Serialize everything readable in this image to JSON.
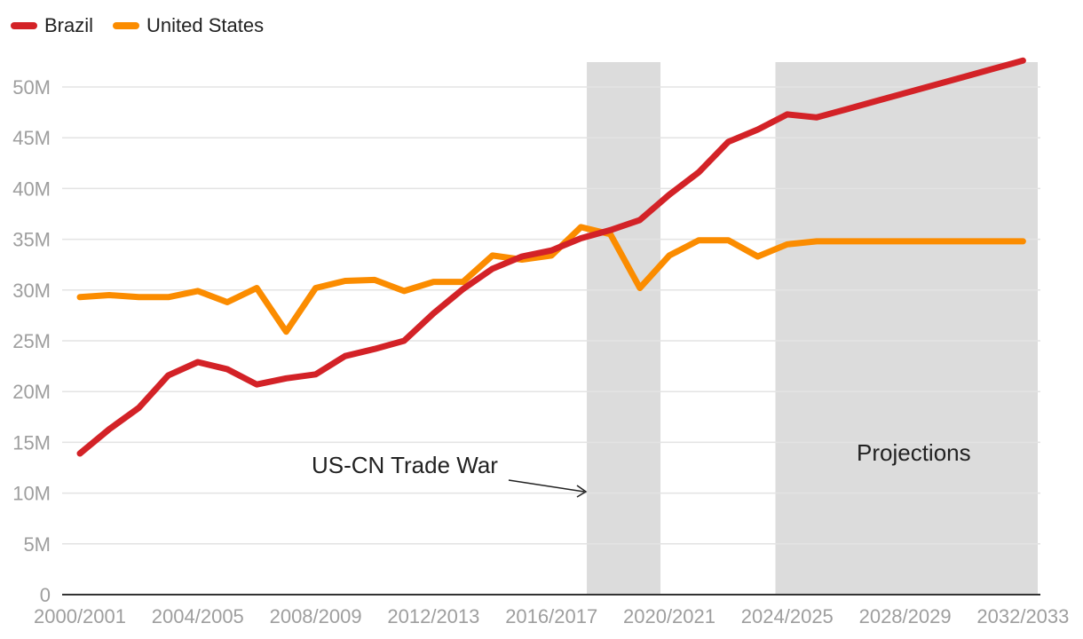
{
  "chart_data": {
    "type": "line",
    "title": "",
    "xlabel": "",
    "ylabel": "",
    "ylim": [
      0,
      52500000
    ],
    "yticks": [
      {
        "value": 0,
        "label": "0"
      },
      {
        "value": 5000000,
        "label": "5M"
      },
      {
        "value": 10000000,
        "label": "10M"
      },
      {
        "value": 15000000,
        "label": "15M"
      },
      {
        "value": 20000000,
        "label": "20M"
      },
      {
        "value": 25000000,
        "label": "25M"
      },
      {
        "value": 30000000,
        "label": "30M"
      },
      {
        "value": 35000000,
        "label": "35M"
      },
      {
        "value": 40000000,
        "label": "40M"
      },
      {
        "value": 45000000,
        "label": "45M"
      },
      {
        "value": 50000000,
        "label": "50M"
      }
    ],
    "grid": true,
    "legend_position": "top-left",
    "categories": [
      "2000/2001",
      "2001/2002",
      "2002/2003",
      "2003/2004",
      "2004/2005",
      "2005/2006",
      "2006/2007",
      "2007/2008",
      "2008/2009",
      "2009/2010",
      "2010/2011",
      "2011/2012",
      "2012/2013",
      "2013/2014",
      "2014/2015",
      "2015/2016",
      "2016/2017",
      "2017/2018",
      "2018/2019",
      "2019/2020",
      "2020/2021",
      "2021/2022",
      "2022/2023",
      "2023/2024",
      "2024/2025",
      "2025/2026",
      "2026/2027",
      "2027/2028",
      "2028/2029",
      "2029/2030",
      "2030/2031",
      "2031/2032",
      "2032/2033"
    ],
    "xtick_labels": [
      "2000/2001",
      "2004/2005",
      "2008/2009",
      "2012/2013",
      "2016/2017",
      "2020/2021",
      "2024/2025",
      "2028/2029",
      "2032/2033"
    ],
    "xtick_indices": [
      0,
      4,
      8,
      12,
      16,
      20,
      24,
      28,
      32
    ],
    "series": [
      {
        "name": "Brazil",
        "color": "#d32227",
        "values": [
          13900000,
          16300000,
          18400000,
          21600000,
          22900000,
          22200000,
          20700000,
          21300000,
          21700000,
          23500000,
          24200000,
          25000000,
          27700000,
          30100000,
          32100000,
          33300000,
          33900000,
          35100000,
          35900000,
          36900000,
          39400000,
          41600000,
          44600000,
          45800000,
          47300000,
          47000000,
          47800000,
          48600000,
          49400000,
          50200000,
          51000000,
          51800000,
          52600000
        ]
      },
      {
        "name": "United States",
        "color": "#fb8c00",
        "values": [
          29300000,
          29500000,
          29300000,
          29300000,
          29900000,
          28800000,
          30200000,
          25900000,
          30200000,
          30900000,
          31000000,
          29900000,
          30800000,
          30800000,
          33400000,
          33000000,
          33400000,
          36200000,
          35500000,
          30200000,
          33400000,
          34900000,
          34900000,
          33300000,
          34500000,
          34800000,
          34800000,
          34800000,
          34800000,
          34800000,
          34800000,
          34800000,
          34800000
        ]
      }
    ],
    "shaded_regions": [
      {
        "name": "trade-war",
        "x_start": 17.2,
        "x_end": 19.7
      },
      {
        "name": "projections",
        "x_start": 23.6,
        "x_end": 32.5
      }
    ],
    "annotations": [
      {
        "name": "trade-war-annotation",
        "text": "US-CN Trade War"
      },
      {
        "name": "projections-annotation",
        "text": "Projections"
      }
    ],
    "shade_color": "#dcdcdc"
  }
}
